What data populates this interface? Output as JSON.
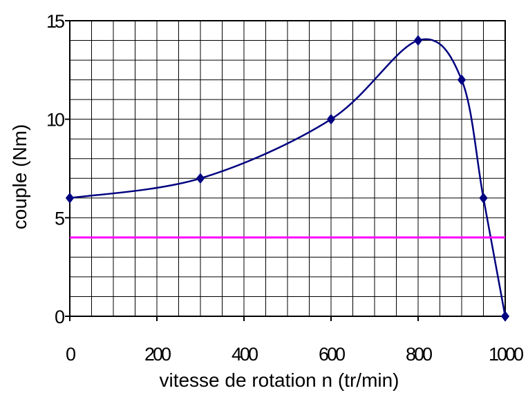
{
  "chart_data": {
    "type": "line",
    "title": "",
    "xlabel": "vitesse de rotation n (tr/min)",
    "ylabel": "couple (Nm)",
    "xlim": [
      0,
      1000
    ],
    "ylim": [
      0,
      15
    ],
    "x_ticks": [
      0,
      200,
      400,
      600,
      800,
      1000
    ],
    "x_tick_labels": [
      "0",
      "200",
      "400",
      "600",
      "800",
      "1000"
    ],
    "y_ticks": [
      0,
      5,
      10,
      15
    ],
    "y_tick_labels": [
      "0",
      "5",
      "10",
      "15"
    ],
    "grid": true,
    "x_grid_step": 50,
    "y_grid_step": 1,
    "legend": "none",
    "series": [
      {
        "type": "smooth-line",
        "color": "#000080",
        "marker": "diamond",
        "x": [
          0,
          300,
          600,
          800,
          900,
          950,
          1000
        ],
        "y": [
          6,
          7,
          10,
          14,
          12,
          6,
          0
        ]
      },
      {
        "type": "horizontal-line",
        "color": "#ff00ff",
        "x": [
          0,
          1000
        ],
        "y": [
          4,
          4
        ]
      }
    ]
  }
}
